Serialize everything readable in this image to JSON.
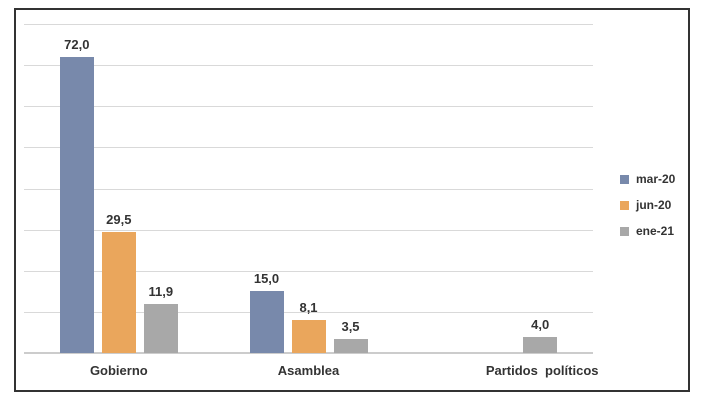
{
  "figure": {
    "background_color": "#ffffff",
    "border_color": "#333333"
  },
  "chart_data": {
    "type": "bar",
    "title": "",
    "xlabel": "",
    "ylabel": "",
    "categories": [
      "Gobierno",
      "Asamblea",
      "Partidos  políticos"
    ],
    "series": [
      {
        "name": "mar-20",
        "color": "#7889ab",
        "values": [
          72.0,
          15.0,
          null
        ],
        "labels": [
          "72,0",
          "15,0",
          ""
        ]
      },
      {
        "name": "jun-20",
        "color": "#eaa65c",
        "values": [
          29.5,
          8.1,
          null
        ],
        "labels": [
          "29,5",
          "8,1",
          ""
        ]
      },
      {
        "name": "ene-21",
        "color": "#a8a8a8",
        "values": [
          11.9,
          3.5,
          4.0
        ],
        "labels": [
          "11,9",
          "3,5",
          "4,0"
        ]
      }
    ],
    "ylim": [
      0,
      80
    ],
    "grid_step": 10,
    "grid_on": true,
    "y_tick_labels_shown": false,
    "legend_position": "right",
    "gridline_color": "#d9d9d9",
    "axis_line_color": "#cccccc",
    "text_color": "#333333"
  }
}
